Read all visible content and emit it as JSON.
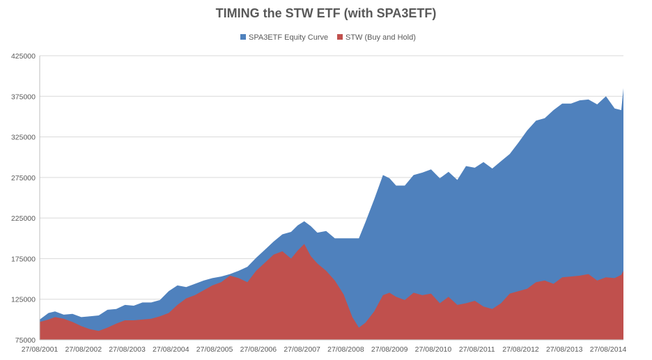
{
  "chart_data": {
    "type": "area",
    "title": "TIMING the STW ETF (with SPA3ETF)",
    "xlabel": "",
    "ylabel": "",
    "legend_position": "top",
    "grid": true,
    "ylim": [
      75000,
      425000
    ],
    "y_ticks": [
      "75000",
      "125000",
      "175000",
      "225000",
      "275000",
      "325000",
      "375000",
      "425000"
    ],
    "x_ticks": [
      "27/08/2001",
      "27/08/2002",
      "27/08/2003",
      "27/08/2004",
      "27/08/2005",
      "27/08/2006",
      "27/08/2007",
      "27/08/2008",
      "27/08/2009",
      "27/08/2010",
      "27/08/2011",
      "27/08/2012",
      "27/08/2013",
      "27/08/2014"
    ],
    "x": [
      2001.65,
      2001.85,
      2002.0,
      2002.2,
      2002.4,
      2002.6,
      2002.8,
      2003.0,
      2003.2,
      2003.4,
      2003.6,
      2003.8,
      2004.0,
      2004.2,
      2004.4,
      2004.6,
      2004.8,
      2005.0,
      2005.2,
      2005.4,
      2005.6,
      2005.8,
      2006.0,
      2006.2,
      2006.4,
      2006.6,
      2006.8,
      2007.0,
      2007.2,
      2007.4,
      2007.55,
      2007.7,
      2007.85,
      2008.0,
      2008.2,
      2008.4,
      2008.6,
      2008.8,
      2008.95,
      2009.1,
      2009.3,
      2009.5,
      2009.65,
      2009.8,
      2010.0,
      2010.2,
      2010.4,
      2010.6,
      2010.8,
      2011.0,
      2011.2,
      2011.4,
      2011.6,
      2011.8,
      2012.0,
      2012.2,
      2012.4,
      2012.6,
      2012.8,
      2013.0,
      2013.2,
      2013.4,
      2013.6,
      2013.8,
      2014.0,
      2014.2,
      2014.4,
      2014.6,
      2014.8,
      2014.95,
      2015.0
    ],
    "series": [
      {
        "name": "SPA3ETF Equity Curve",
        "color": "#4f81bd",
        "values": [
          100000,
          108000,
          110000,
          106000,
          107000,
          103000,
          104000,
          105000,
          112000,
          113000,
          118000,
          117000,
          121000,
          121000,
          124000,
          135000,
          142000,
          140000,
          144000,
          148000,
          151000,
          153000,
          156000,
          160000,
          165000,
          176000,
          186000,
          196000,
          205000,
          208000,
          216000,
          221000,
          215000,
          207000,
          209000,
          200000,
          200000,
          200000,
          200000,
          220000,
          248000,
          278000,
          274000,
          265000,
          265000,
          278000,
          281000,
          285000,
          274000,
          282000,
          272000,
          289000,
          287000,
          294000,
          286000,
          295000,
          304000,
          318000,
          333000,
          345000,
          348000,
          358000,
          366000,
          366000,
          370000,
          371000,
          365000,
          375000,
          360000,
          358000,
          385000
        ]
      },
      {
        "name": "STW (Buy and Hold)",
        "color": "#c0504d",
        "values": [
          97000,
          100000,
          103000,
          101000,
          97000,
          92000,
          88000,
          86000,
          90000,
          95000,
          99000,
          99000,
          100000,
          101000,
          104000,
          108000,
          118000,
          126000,
          130000,
          136000,
          142000,
          146000,
          154000,
          151000,
          146000,
          160000,
          170000,
          180000,
          184000,
          175000,
          185000,
          193000,
          178000,
          169000,
          160000,
          148000,
          131000,
          103000,
          90000,
          96000,
          110000,
          130000,
          133000,
          128000,
          124000,
          133000,
          130000,
          132000,
          120000,
          128000,
          118000,
          120000,
          123000,
          116000,
          113000,
          120000,
          132000,
          135000,
          138000,
          146000,
          148000,
          144000,
          152000,
          153000,
          154000,
          156000,
          148000,
          152000,
          151000,
          155000,
          160000
        ]
      }
    ]
  }
}
